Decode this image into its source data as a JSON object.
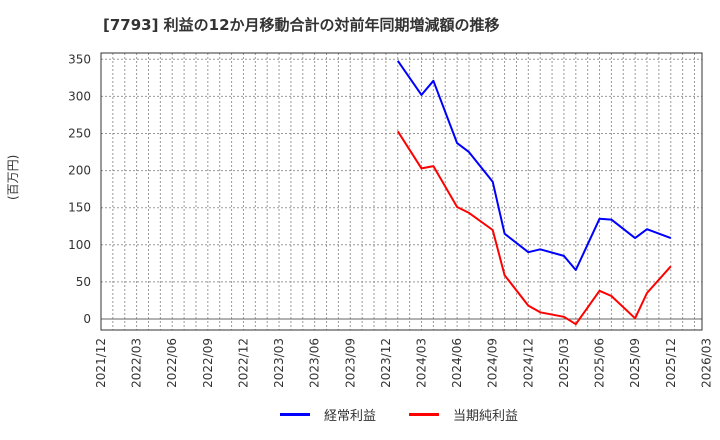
{
  "title": "[7793]  利益の12か月移動合計の対前年同期増減額の推移",
  "y_axis_unit": "(百万円)",
  "legend": [
    {
      "label": "経常利益",
      "color": "#0000ff"
    },
    {
      "label": "当期純利益",
      "color": "#ff0000"
    }
  ],
  "chart_data": {
    "type": "line",
    "title": "[7793]  利益の12か月移動合計の対前年同期増減額の推移",
    "xlabel": "",
    "ylabel": "(百万円)",
    "ylim": [
      -15,
      360
    ],
    "yticks": [
      0,
      50,
      100,
      150,
      200,
      250,
      300,
      350
    ],
    "xtick_labels": [
      "2021/12",
      "2022/03",
      "2022/06",
      "2022/09",
      "2022/12",
      "2023/03",
      "2023/06",
      "2023/09",
      "2023/12",
      "2024/03",
      "2024/06",
      "2024/09",
      "2024/12",
      "2025/03",
      "2025/06",
      "2025/09",
      "2025/12",
      "2026/03"
    ],
    "grid": true,
    "legend_position": "bottom",
    "x": [
      "2024/01",
      "2024/03",
      "2024/04",
      "2024/06",
      "2024/07",
      "2024/09",
      "2024/10",
      "2024/12",
      "2025/01",
      "2025/03",
      "2025/04",
      "2025/06",
      "2025/07",
      "2025/09",
      "2025/10",
      "2025/12"
    ],
    "series": [
      {
        "name": "経常利益",
        "color": "#0000ff",
        "values": [
          348,
          302,
          321,
          237,
          225,
          185,
          115,
          90,
          94,
          85,
          66,
          135,
          134,
          109,
          121,
          109
        ]
      },
      {
        "name": "当期純利益",
        "color": "#ff0000",
        "values": [
          253,
          203,
          206,
          151,
          143,
          120,
          59,
          18,
          9,
          3,
          -7,
          38,
          31,
          1,
          35,
          71
        ]
      }
    ]
  }
}
